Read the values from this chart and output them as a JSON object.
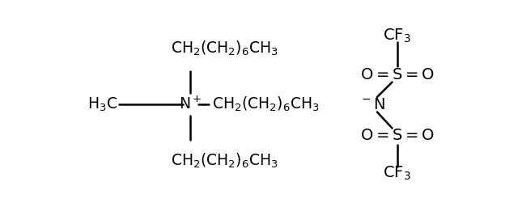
{
  "bg_color": "#ffffff",
  "figsize": [
    6.4,
    2.56
  ],
  "dpi": 100,
  "font_size": 13.5,
  "font_size_anion": 14,
  "lw": 1.8
}
